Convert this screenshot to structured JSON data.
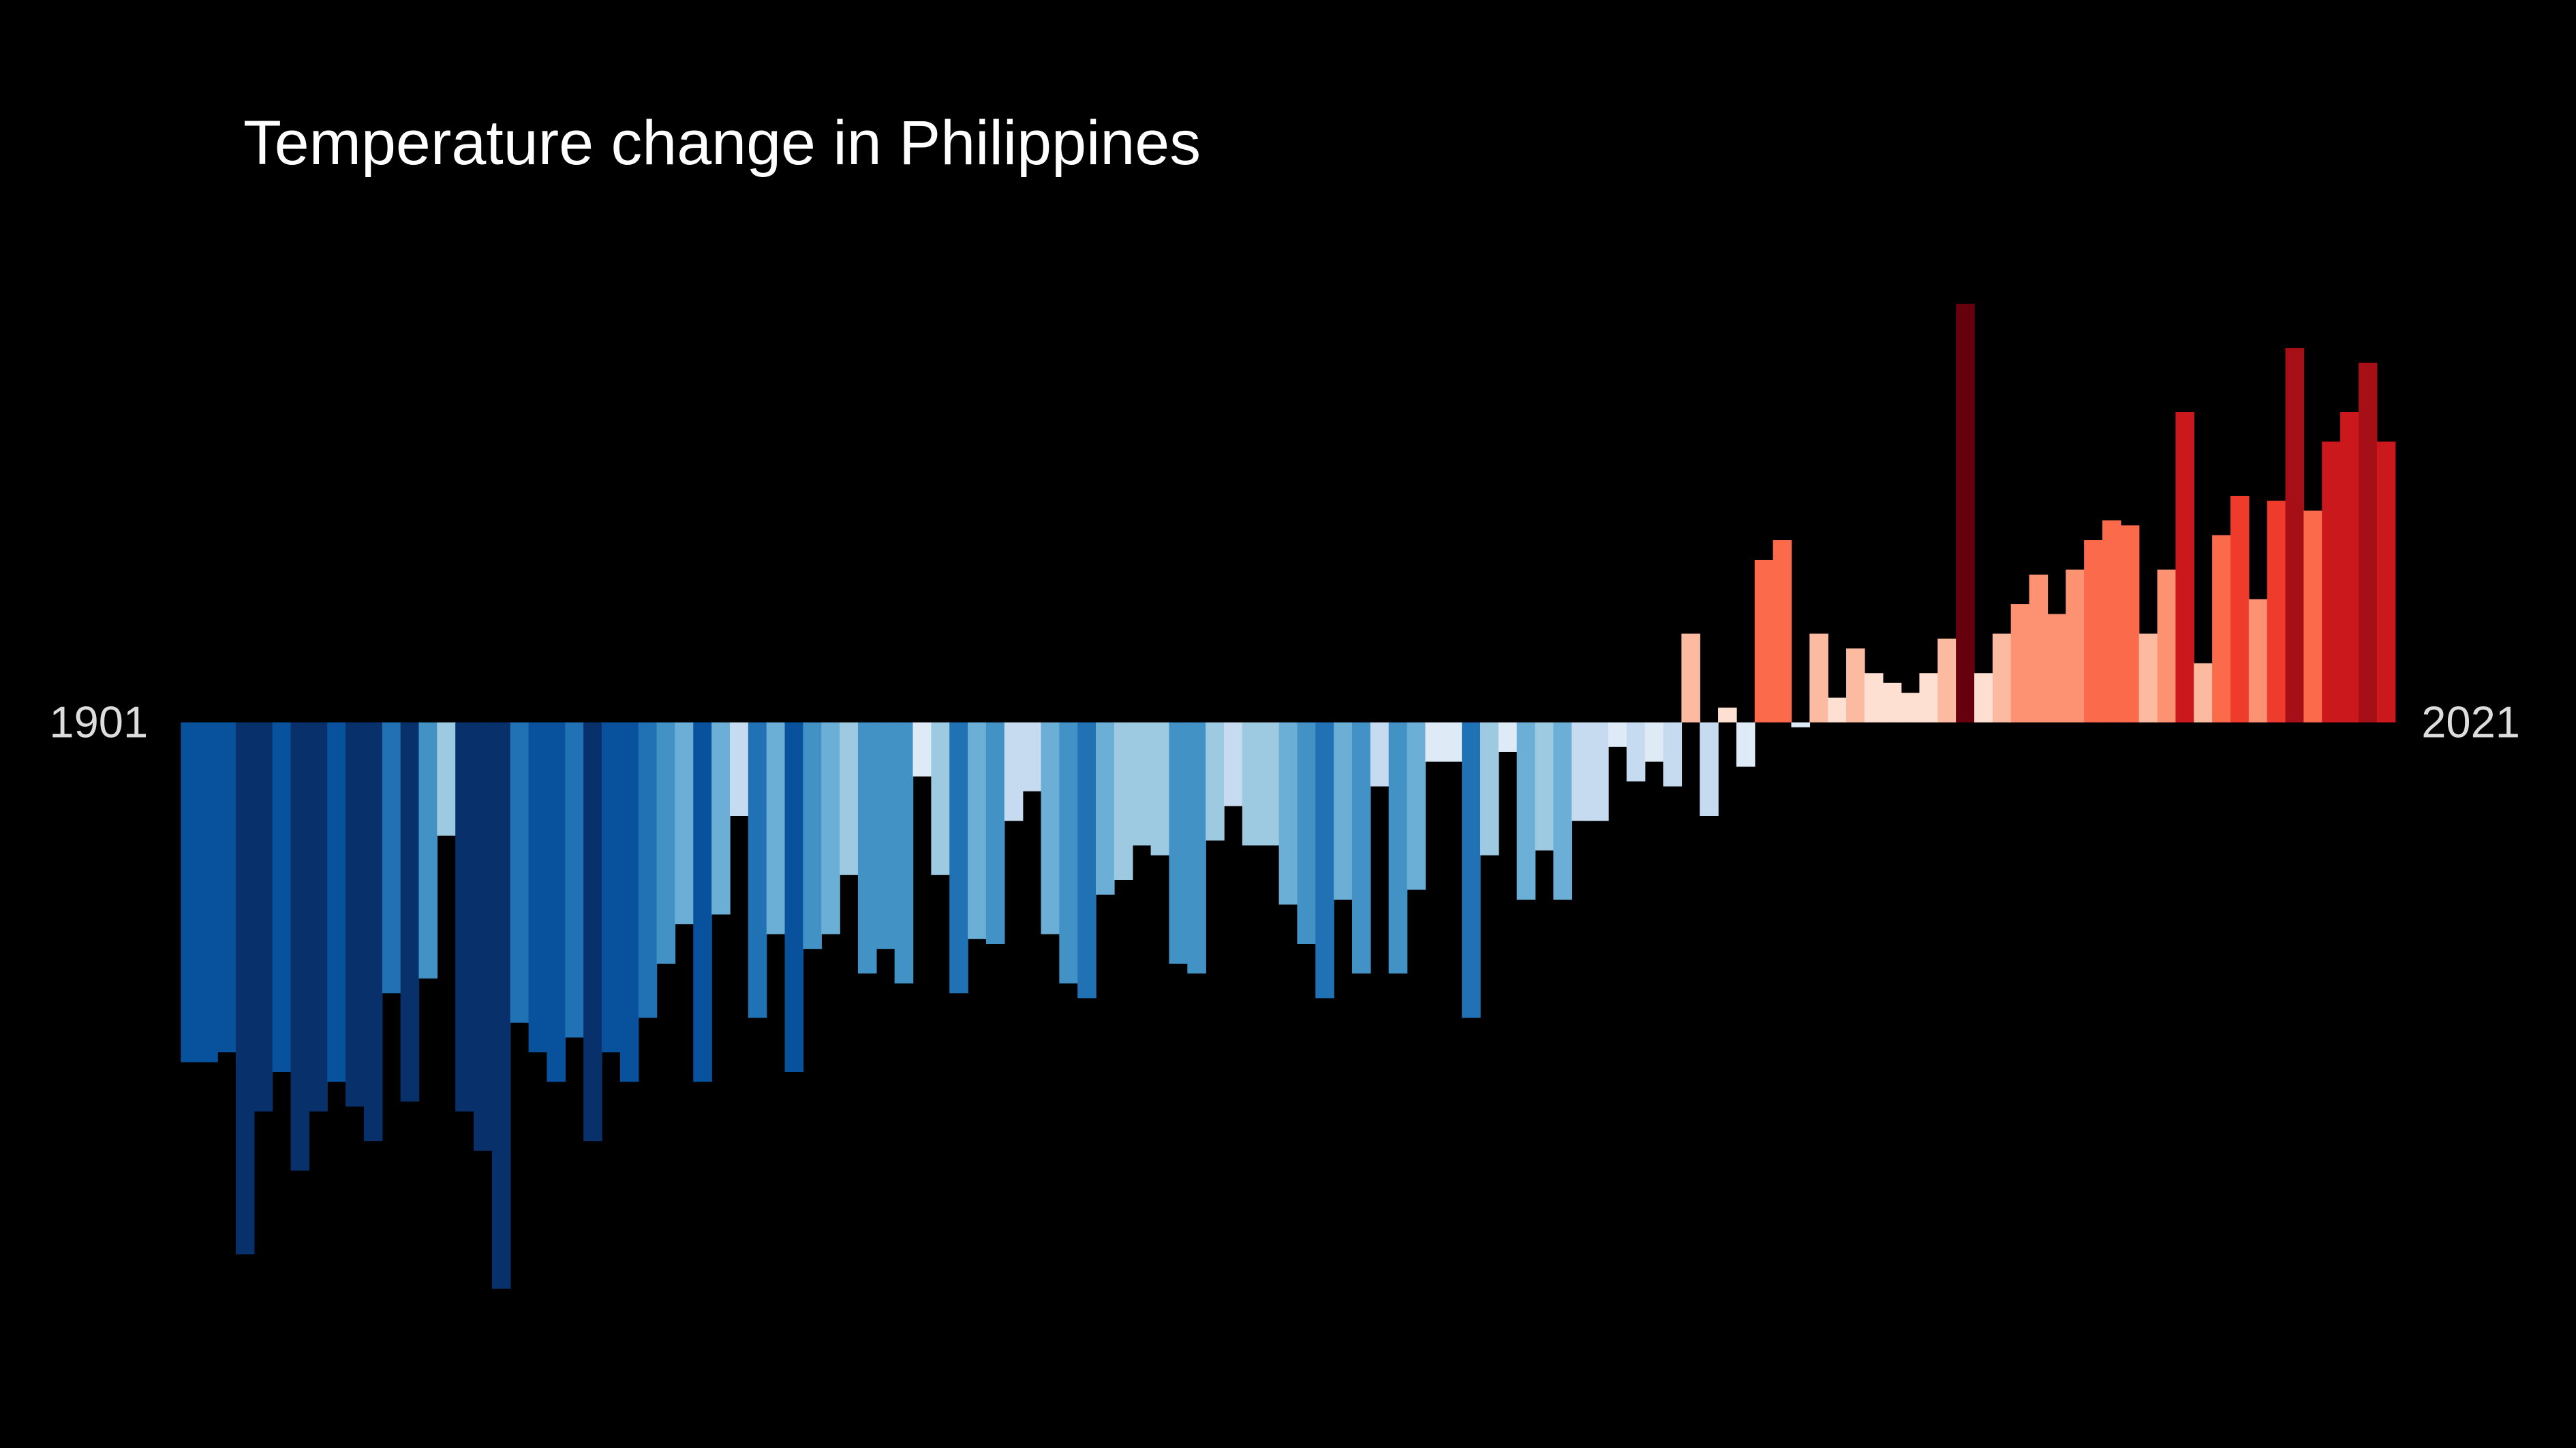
{
  "chart_data": {
    "type": "bar",
    "title": "Temperature change in Philippines",
    "categories": [
      1901,
      null,
      null,
      null,
      null,
      null,
      null,
      null,
      null,
      null,
      null,
      null,
      null,
      null,
      null,
      null,
      null,
      null,
      null,
      null,
      null,
      null,
      null,
      null,
      null,
      null,
      null,
      null,
      null,
      null,
      null,
      null,
      null,
      null,
      null,
      null,
      null,
      null,
      null,
      null,
      null,
      null,
      null,
      null,
      null,
      null,
      null,
      null,
      null,
      null,
      null,
      null,
      null,
      null,
      null,
      null,
      null,
      null,
      null,
      null,
      null,
      null,
      null,
      null,
      null,
      null,
      null,
      null,
      null,
      null,
      null,
      null,
      null,
      null,
      null,
      null,
      null,
      null,
      null,
      null,
      null,
      null,
      null,
      null,
      null,
      null,
      null,
      null,
      null,
      null,
      null,
      null,
      null,
      null,
      null,
      null,
      null,
      null,
      null,
      null,
      null,
      null,
      null,
      null,
      null,
      null,
      null,
      null,
      null,
      null,
      null,
      null,
      null,
      null,
      null,
      null,
      null,
      null,
      null,
      null,
      2021
    ],
    "values": [
      -0.69,
      -0.69,
      -0.67,
      -1.08,
      -0.79,
      -0.71,
      -0.91,
      -0.79,
      -0.73,
      -0.78,
      -0.85,
      -0.55,
      -0.77,
      -0.52,
      -0.23,
      -0.79,
      -0.87,
      -1.15,
      -0.61,
      -0.67,
      -0.73,
      -0.64,
      -0.85,
      -0.67,
      -0.73,
      -0.6,
      -0.49,
      -0.41,
      -0.73,
      -0.39,
      -0.19,
      -0.6,
      -0.43,
      -0.71,
      -0.46,
      -0.43,
      -0.31,
      -0.51,
      -0.46,
      -0.53,
      -0.11,
      -0.31,
      -0.55,
      -0.44,
      -0.45,
      -0.2,
      -0.14,
      -0.43,
      -0.53,
      -0.56,
      -0.35,
      -0.32,
      -0.25,
      -0.27,
      -0.49,
      -0.51,
      -0.24,
      -0.17,
      -0.25,
      -0.25,
      -0.37,
      -0.45,
      -0.56,
      -0.36,
      -0.51,
      -0.13,
      -0.51,
      -0.34,
      -0.08,
      -0.08,
      -0.6,
      -0.27,
      -0.06,
      -0.36,
      -0.26,
      -0.36,
      -0.2,
      -0.2,
      -0.05,
      -0.12,
      -0.08,
      -0.13,
      0.18,
      -0.19,
      0.03,
      -0.09,
      0.33,
      0.37,
      -0.01,
      0.18,
      0.05,
      0.15,
      0.1,
      0.08,
      0.06,
      0.1,
      0.17,
      0.85,
      0.1,
      0.18,
      0.24,
      0.3,
      0.22,
      0.31,
      0.37,
      0.41,
      0.4,
      0.18,
      0.31,
      0.63,
      0.12,
      0.38,
      0.46,
      0.25,
      0.45,
      0.76,
      0.43,
      0.57,
      0.63,
      0.73,
      0.57
    ],
    "ylim": [
      -1.3,
      1.0
    ],
    "color_range": [
      -0.88,
      0.88
    ],
    "colors": [
      "#08306b",
      "#08519c",
      "#2171b5",
      "#4292c6",
      "#6baed6",
      "#9ecae1",
      "#c6dbef",
      "#deebf7",
      "#fee0d2",
      "#fcbba1",
      "#fc9272",
      "#fb6a4a",
      "#ef3b2c",
      "#cb181d",
      "#a50f15",
      "#67000d"
    ],
    "background": "#000000"
  }
}
